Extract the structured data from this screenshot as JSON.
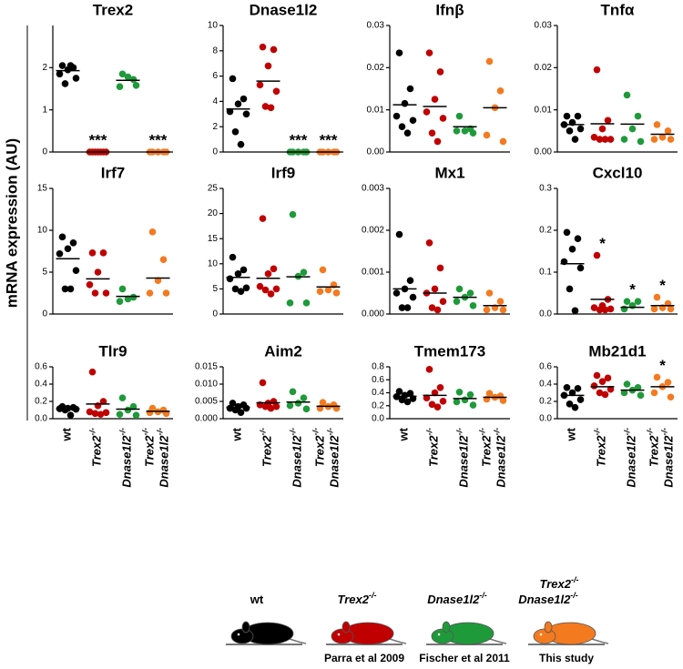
{
  "y_axis_label": "mRNA expression (AU)",
  "groups": [
    {
      "label": [
        {
          "text": "wt"
        }
      ],
      "color": "#000000"
    },
    {
      "label": [
        {
          "text": "Trex2",
          "sup": "-/-"
        }
      ],
      "color": "#c00000",
      "citation": "Parra et al 2009"
    },
    {
      "label": [
        {
          "text": "Dnase1l2",
          "sup": "-/-"
        }
      ],
      "color": "#1f9a3a",
      "citation": "Fischer et al 2011"
    },
    {
      "label": [
        {
          "text": "Trex2",
          "sup": "-/-"
        },
        {
          "text": "Dnase1l2",
          "sup": "-/-"
        }
      ],
      "color": "#f47a20",
      "citation": "This study"
    }
  ],
  "chart_data": [
    {
      "type": "dot",
      "title": "Trex2",
      "ylim": [
        0,
        3
      ],
      "yticks": [
        0,
        1,
        2
      ],
      "series": [
        {
          "values": [
            2.05,
            2.0,
            1.95,
            1.85,
            1.75,
            1.62,
            2.05
          ],
          "mean": 1.93
        },
        {
          "values": [
            0,
            0,
            0,
            0,
            0,
            0,
            0
          ],
          "mean": 0,
          "significance": "***"
        },
        {
          "values": [
            1.85,
            1.72,
            1.78,
            1.55,
            1.58
          ],
          "mean": 1.7
        },
        {
          "values": [
            0,
            0,
            0,
            0,
            0
          ],
          "mean": 0,
          "significance": "***"
        }
      ]
    },
    {
      "type": "dot",
      "title": "Dnase1l2",
      "ylim": [
        0,
        10
      ],
      "yticks": [
        0,
        2,
        4,
        6,
        8,
        10
      ],
      "series": [
        {
          "values": [
            5.8,
            4.2,
            3.8,
            3.2,
            3.0,
            1.6,
            0.6
          ],
          "mean": 3.4
        },
        {
          "values": [
            8.3,
            8.1,
            6.8,
            5.3,
            4.8,
            3.6,
            3.5
          ],
          "mean": 5.6
        },
        {
          "values": [
            0,
            0,
            0,
            0,
            0
          ],
          "mean": 0,
          "significance": "***"
        },
        {
          "values": [
            0,
            0,
            0,
            0,
            0
          ],
          "mean": 0,
          "significance": "***"
        }
      ]
    },
    {
      "type": "dot",
      "title": "Ifnβ",
      "ylim": [
        0,
        0.03
      ],
      "yticks": [
        {
          "value": 0,
          "label": "0.00"
        },
        0.01,
        0.02,
        0.03
      ],
      "series": [
        {
          "values": [
            0.0235,
            0.015,
            0.0115,
            0.0085,
            0.0075,
            0.006,
            0.0045
          ],
          "mean": 0.0112
        },
        {
          "values": [
            0.0235,
            0.019,
            0.0125,
            0.0095,
            0.008,
            0.0045,
            0.0025
          ],
          "mean": 0.0108
        },
        {
          "values": [
            0.0085,
            0.0055,
            0.005,
            0.005,
            0.0045
          ],
          "mean": 0.006
        },
        {
          "values": [
            0.0215,
            0.0145,
            0.0105,
            0.004,
            0.0025
          ],
          "mean": 0.0105
        }
      ]
    },
    {
      "type": "dot",
      "title": "Tnfα",
      "ylim": [
        0,
        0.03
      ],
      "yticks": [
        {
          "value": 0,
          "label": "0.00"
        },
        0.01,
        0.02,
        0.03
      ],
      "series": [
        {
          "values": [
            0.0085,
            0.0085,
            0.007,
            0.0065,
            0.0055,
            0.005,
            0.003
          ],
          "mean": 0.0065
        },
        {
          "values": [
            0.0195,
            0.0075,
            0.0055,
            0.0035,
            0.003,
            0.003,
            0.003
          ],
          "mean": 0.0067
        },
        {
          "values": [
            0.0135,
            0.0085,
            0.0055,
            0.003,
            0.0025
          ],
          "mean": 0.0066
        },
        {
          "values": [
            0.0065,
            0.005,
            0.0035,
            0.003,
            0.003
          ],
          "mean": 0.0042
        }
      ]
    },
    {
      "type": "dot",
      "title": "Irf7",
      "ylim": [
        0,
        15
      ],
      "yticks": [
        0,
        5,
        10,
        15
      ],
      "series": [
        {
          "values": [
            9.2,
            8.5,
            7.8,
            7.2,
            5.2,
            3,
            3
          ],
          "mean": 6.6
        },
        {
          "values": [
            7.3,
            7.3,
            5,
            3.5,
            2.5,
            2.5
          ],
          "mean": 4.2
        },
        {
          "values": [
            3,
            2,
            1.8,
            1.5
          ],
          "mean": 2.1
        },
        {
          "values": [
            9.8,
            6.5,
            4,
            2.5,
            2.5
          ],
          "mean": 4.3
        }
      ]
    },
    {
      "type": "dot",
      "title": "Irf9",
      "ylim": [
        0,
        25
      ],
      "yticks": [
        0,
        5,
        10,
        15,
        20,
        25
      ],
      "series": [
        {
          "values": [
            11.3,
            8.8,
            8,
            7,
            5.2,
            5,
            4.5
          ],
          "mean": 7.3
        },
        {
          "values": [
            19,
            9,
            8,
            5.5,
            5,
            4.8,
            4
          ],
          "mean": 7.1
        },
        {
          "values": [
            19.8,
            8.3,
            7.5,
            2.2,
            2.2
          ],
          "mean": 7.4
        },
        {
          "values": [
            8.8,
            5.8,
            4.8,
            4.5,
            4.2
          ],
          "mean": 5.4
        }
      ]
    },
    {
      "type": "dot",
      "title": "Mx1",
      "ylim": [
        0,
        0.003
      ],
      "yticks": [
        {
          "value": 0,
          "label": "0.000"
        },
        0.001,
        0.002,
        0.003
      ],
      "series": [
        {
          "values": [
            0.0019,
            0.0008,
            0.0006,
            0.0005,
            0.0004,
            0.00015,
            0.00015
          ],
          "mean": 0.0006
        },
        {
          "values": [
            0.0017,
            0.0011,
            0.0006,
            0.0005,
            0.0003,
            0.00015,
            0.0001
          ],
          "mean": 0.0005
        },
        {
          "values": [
            0.0006,
            0.0005,
            0.0004,
            0.0003,
            0.0002
          ],
          "mean": 0.0004
        },
        {
          "values": [
            0.0005,
            0.0003,
            0.00015,
            0.0001,
            0.0001
          ],
          "mean": 0.0002
        }
      ]
    },
    {
      "type": "dot",
      "title": "Cxcl10",
      "ylim": [
        0,
        0.3
      ],
      "yticks": [
        {
          "value": 0,
          "label": "0.0"
        },
        0.1,
        0.2,
        0.3
      ],
      "series": [
        {
          "values": [
            0.195,
            0.18,
            0.155,
            0.125,
            0.11,
            0.06,
            0.008
          ],
          "mean": 0.12
        },
        {
          "values": [
            0.14,
            0.035,
            0.02,
            0.015,
            0.012,
            0.01,
            0.01
          ],
          "mean": 0.035,
          "significance": "*"
        },
        {
          "values": [
            0.03,
            0.03,
            0.02,
            0.012
          ],
          "mean": 0.016,
          "significance": "*"
        },
        {
          "values": [
            0.04,
            0.025,
            0.015,
            0.012,
            0.012
          ],
          "mean": 0.02,
          "significance": "*"
        }
      ]
    },
    {
      "type": "dot",
      "title": "Tlr9",
      "ylim": [
        0,
        0.6
      ],
      "yticks": [
        {
          "value": 0,
          "label": "0.0"
        },
        0.2,
        0.4,
        0.6
      ],
      "series": [
        {
          "values": [
            0.14,
            0.13,
            0.12,
            0.115,
            0.11,
            0.1,
            0.04
          ],
          "mean": 0.115
        },
        {
          "values": [
            0.54,
            0.2,
            0.15,
            0.08,
            0.07,
            0.06,
            0.05
          ],
          "mean": 0.17
        },
        {
          "values": [
            0.24,
            0.14,
            0.1,
            0.05,
            0.04
          ],
          "mean": 0.11
        },
        {
          "values": [
            0.12,
            0.1,
            0.08,
            0.07,
            0.06
          ],
          "mean": 0.085
        }
      ]
    },
    {
      "type": "dot",
      "title": "Aim2",
      "ylim": [
        0,
        0.015
      ],
      "yticks": [
        {
          "value": 0,
          "label": "0.000"
        },
        0.005,
        {
          "value": 0.01,
          "label": "0.010"
        },
        0.015
      ],
      "series": [
        {
          "values": [
            0.0045,
            0.004,
            0.0035,
            0.003,
            0.003,
            0.0025,
            0.0018
          ],
          "mean": 0.0033
        },
        {
          "values": [
            0.0104,
            0.005,
            0.0045,
            0.004,
            0.0035,
            0.0035,
            0.003
          ],
          "mean": 0.0046
        },
        {
          "values": [
            0.0078,
            0.006,
            0.0045,
            0.0038,
            0.0028
          ],
          "mean": 0.0048
        },
        {
          "values": [
            0.0047,
            0.004,
            0.0035,
            0.003,
            0.003
          ],
          "mean": 0.0036
        }
      ]
    },
    {
      "type": "dot",
      "title": "Tmem173",
      "ylim": [
        0,
        0.8
      ],
      "yticks": [
        {
          "value": 0,
          "label": "0.0"
        },
        0.2,
        0.4,
        0.6,
        0.8
      ],
      "series": [
        {
          "values": [
            0.42,
            0.39,
            0.36,
            0.34,
            0.31,
            0.29,
            0.26
          ],
          "mean": 0.345
        },
        {
          "values": [
            0.76,
            0.48,
            0.4,
            0.32,
            0.27,
            0.22,
            0.18
          ],
          "mean": 0.36
        },
        {
          "values": [
            0.41,
            0.37,
            0.29,
            0.26,
            0.21
          ],
          "mean": 0.31
        },
        {
          "values": [
            0.39,
            0.35,
            0.33,
            0.3,
            0.28
          ],
          "mean": 0.33
        }
      ]
    },
    {
      "type": "dot",
      "title": "Mb21d1",
      "ylim": [
        0,
        0.6
      ],
      "yticks": [
        {
          "value": 0,
          "label": "0.0"
        },
        0.2,
        0.4,
        0.6
      ],
      "series": [
        {
          "values": [
            0.36,
            0.35,
            0.3,
            0.27,
            0.22,
            0.17,
            0.13
          ],
          "mean": 0.27
        },
        {
          "values": [
            0.5,
            0.47,
            0.43,
            0.38,
            0.34,
            0.3,
            0.28
          ],
          "mean": 0.37
        },
        {
          "values": [
            0.4,
            0.36,
            0.33,
            0.3,
            0.27
          ],
          "mean": 0.33
        },
        {
          "values": [
            0.48,
            0.42,
            0.37,
            0.3,
            0.25
          ],
          "mean": 0.37,
          "significance": "*"
        }
      ]
    }
  ]
}
